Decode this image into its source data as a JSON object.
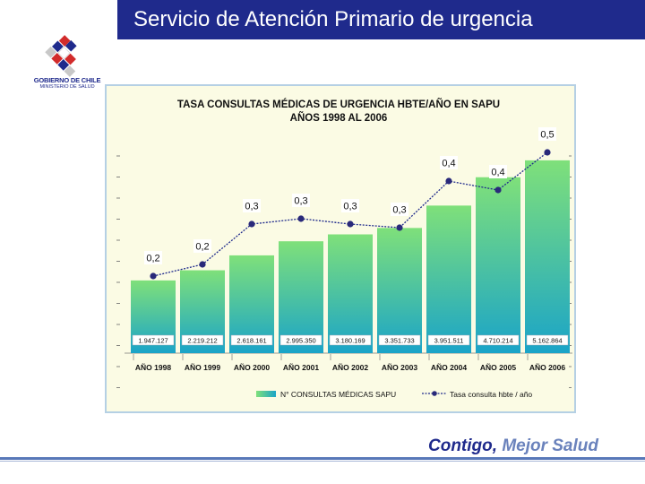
{
  "header": {
    "title": "Servicio de Atención Primario de urgencia"
  },
  "logo": {
    "line1": "GOBIERNO DE CHILE",
    "line2": "MINISTERIO DE SALUD"
  },
  "footer": {
    "slogan_part1": "Contigo,",
    "slogan_part2": "Mejor Salud"
  },
  "colors": {
    "title_bar": "#1f2a8c",
    "bar_top": "#1aa4c8",
    "bar_bottom": "#7fe07a",
    "line": "#1f2a8c",
    "frame_bg": "#fbfbe4"
  },
  "chart_data": {
    "type": "bar",
    "title": "TASA CONSULTAS MÉDICAS DE URGENCIA HBTE/AÑO EN SAPU",
    "subtitle": "AÑOS 1998 AL 2006",
    "categories": [
      "AÑO 1998",
      "AÑO 1999",
      "AÑO 2000",
      "AÑO 2001",
      "AÑO 2002",
      "AÑO 2003",
      "AÑO 2004",
      "AÑO 2005",
      "AÑO 2006"
    ],
    "series": [
      {
        "name": "N° CONSULTAS MÉDICAS SAPU",
        "type": "bar",
        "values": [
          1947127,
          2219212,
          2618161,
          2995350,
          3180169,
          3351733,
          3951511,
          4710214,
          5162864
        ],
        "labels": [
          "1.947.127",
          "2.219.212",
          "2.618.161",
          "2.995.350",
          "3.180.169",
          "3.351.733",
          "3.951.511",
          "4.710.214",
          "5.162.864"
        ]
      },
      {
        "name": "Tasa consulta hbte / año",
        "type": "line",
        "values": [
          0.2,
          0.2,
          0.3,
          0.3,
          0.3,
          0.3,
          0.4,
          0.4,
          0.5
        ],
        "labels": [
          "0,2",
          "0,2",
          "0,3",
          "0,3",
          "0,3",
          "0,3",
          "0,4",
          "0,4",
          "0,5"
        ]
      }
    ],
    "legend": [
      {
        "name": "N° CONSULTAS MÉDICAS SAPU"
      },
      {
        "name": "Tasa consulta hbte / año"
      }
    ],
    "ylim": [
      0,
      6000000
    ],
    "legend_position": "bottom"
  }
}
